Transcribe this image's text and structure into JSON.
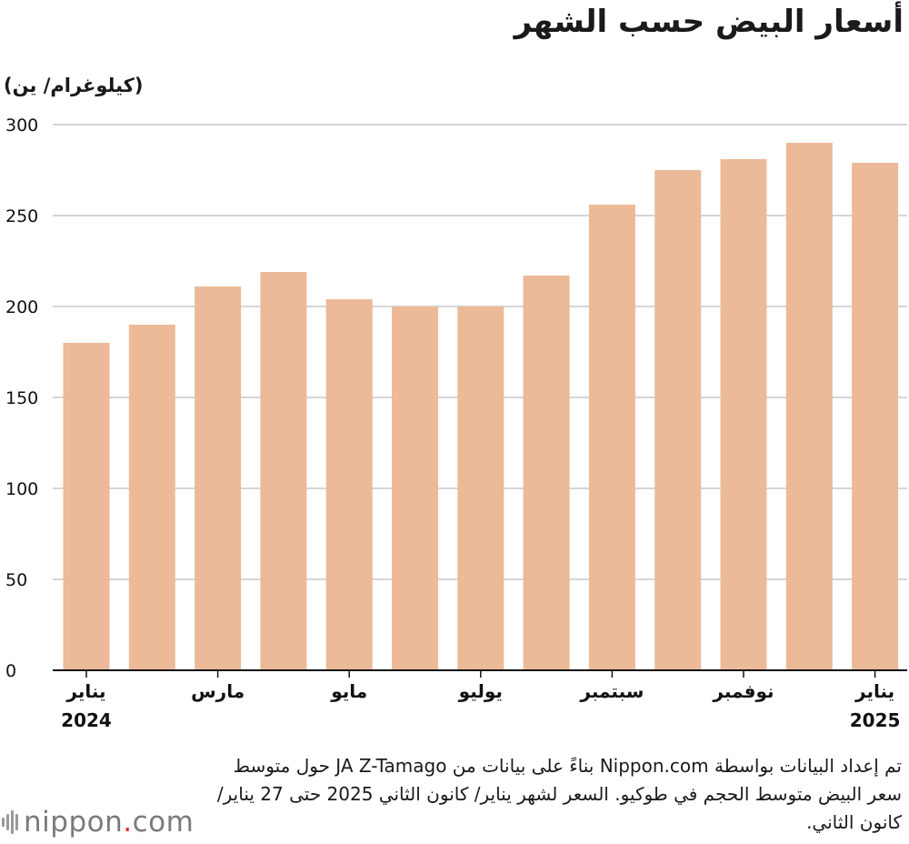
{
  "title": "أسعار البيض حسب الشهر",
  "unit_label": "(كيلوغرام/ ين)",
  "chart_data": {
    "type": "bar",
    "title": "أسعار البيض حسب الشهر",
    "ylabel": "(كيلوغرام/ ين)",
    "xlabel": "",
    "ylim": [
      0,
      300
    ],
    "yticks": [
      0,
      50,
      100,
      150,
      200,
      250,
      300
    ],
    "grid": true,
    "bar_color": "#ecba98",
    "grid_color": "#c8c8c8",
    "categories": [
      "2024-01",
      "2024-02",
      "2024-03",
      "2024-04",
      "2024-05",
      "2024-06",
      "2024-07",
      "2024-08",
      "2024-09",
      "2024-10",
      "2024-11",
      "2024-12",
      "2025-01"
    ],
    "values": [
      180,
      190,
      211,
      219,
      204,
      200,
      200,
      217,
      256,
      275,
      281,
      290,
      279
    ],
    "tick_labels": [
      {
        "index": 0,
        "lines": [
          "يناير",
          "2024"
        ]
      },
      {
        "index": 2,
        "lines": [
          "مارس"
        ]
      },
      {
        "index": 4,
        "lines": [
          "مايو"
        ]
      },
      {
        "index": 6,
        "lines": [
          "يوليو"
        ]
      },
      {
        "index": 8,
        "lines": [
          "سبتمبر"
        ]
      },
      {
        "index": 10,
        "lines": [
          "نوفمبر"
        ]
      },
      {
        "index": 12,
        "lines": [
          "يناير",
          "2025"
        ]
      }
    ]
  },
  "source_note": "تم إعداد البيانات بواسطة Nippon.com بناءً على بيانات من JA Z-Tamago حول متوسط سعر البيض متوسط الحجم في طوكيو. السعر لشهر يناير/ كانون الثاني 2025 حتى 27 يناير/ كانون الثاني.",
  "logo": {
    "name": "nippon",
    "dot": ".",
    "suffix": "com"
  }
}
